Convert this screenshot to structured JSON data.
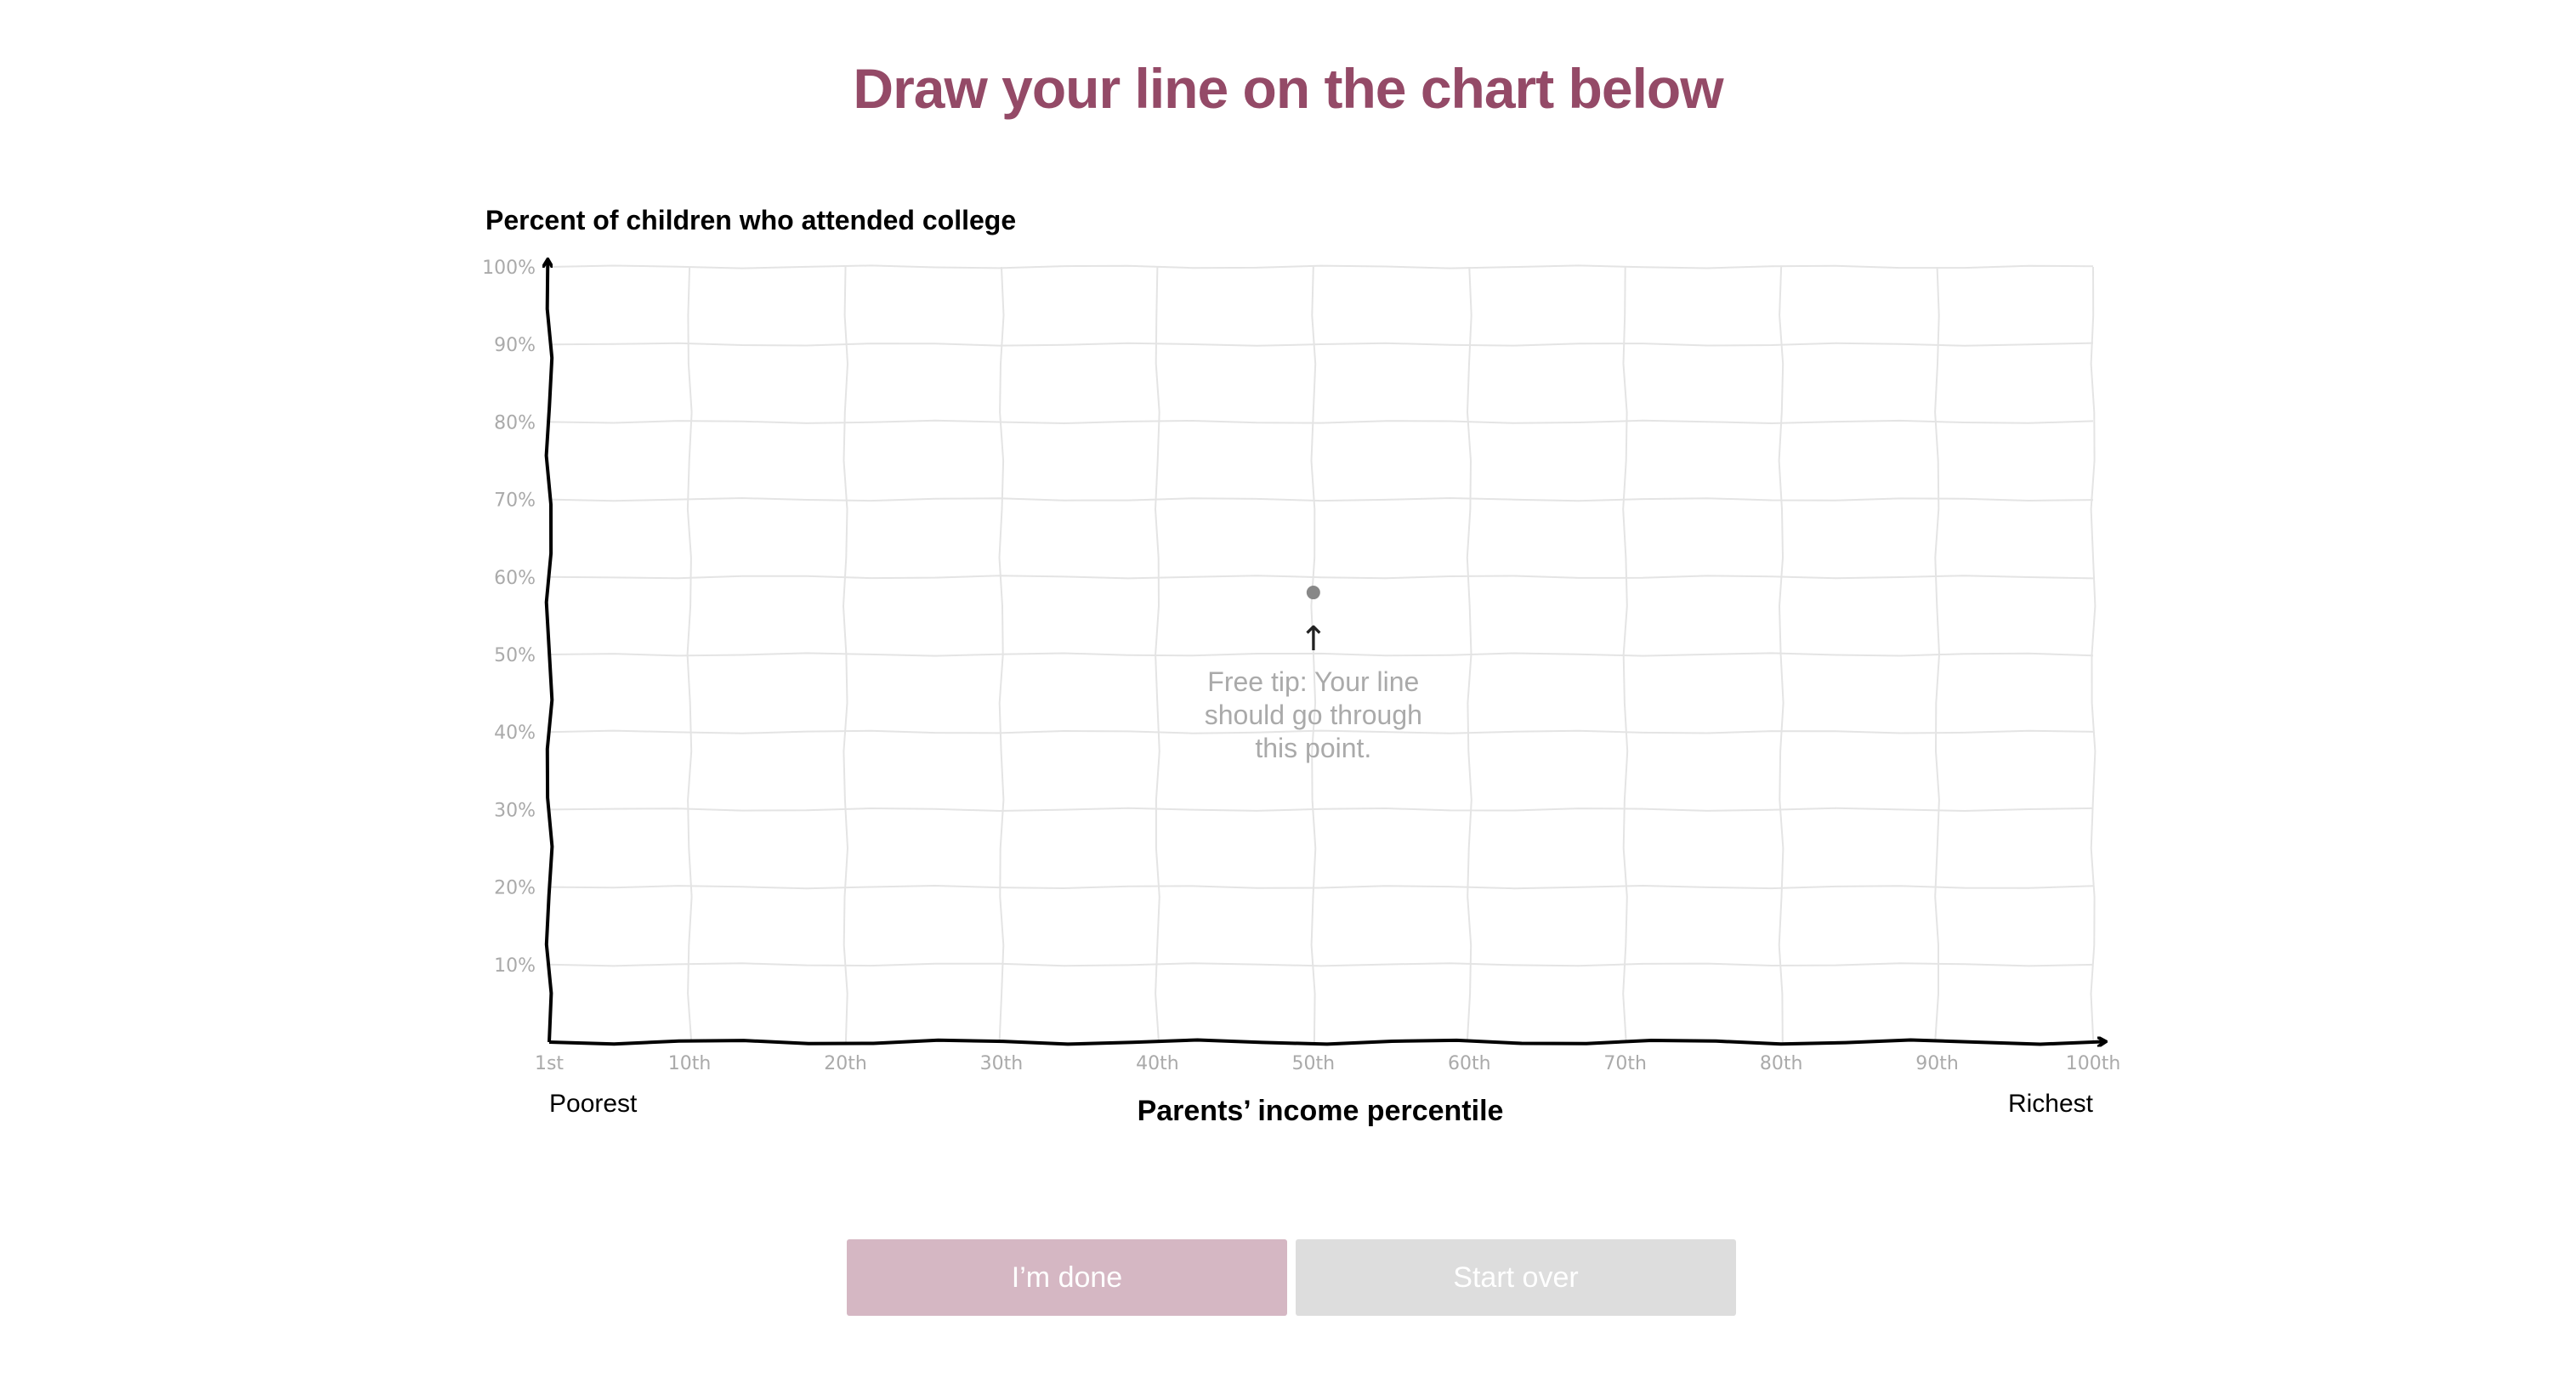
{
  "page": {
    "heading": "Draw your line on the chart below",
    "heading_color": "#944a67"
  },
  "tip": {
    "lines": [
      "Free tip: Your line",
      "should go through",
      "this point."
    ],
    "arrow": "↑"
  },
  "buttons": {
    "done_label": "I’m done",
    "done_color": "#d5b7c3",
    "start_over_label": "Start over",
    "start_over_color": "#dddddd"
  },
  "chart_data": {
    "type": "line",
    "ylabel": "Percent of children who attended college",
    "xlabel": "Parents’ income percentile",
    "x_min_label": "Poorest",
    "x_max_label": "Richest",
    "xlim": [
      1,
      100
    ],
    "ylim": [
      0,
      100
    ],
    "x_ticks": [
      {
        "value": 1,
        "label": "1st"
      },
      {
        "value": 10,
        "label": "10th"
      },
      {
        "value": 20,
        "label": "20th"
      },
      {
        "value": 30,
        "label": "30th"
      },
      {
        "value": 40,
        "label": "40th"
      },
      {
        "value": 50,
        "label": "50th"
      },
      {
        "value": 60,
        "label": "60th"
      },
      {
        "value": 70,
        "label": "70th"
      },
      {
        "value": 80,
        "label": "80th"
      },
      {
        "value": 90,
        "label": "90th"
      },
      {
        "value": 100,
        "label": "100th"
      }
    ],
    "y_ticks": [
      {
        "value": 10,
        "label": "10%"
      },
      {
        "value": 20,
        "label": "20%"
      },
      {
        "value": 30,
        "label": "30%"
      },
      {
        "value": 40,
        "label": "40%"
      },
      {
        "value": 50,
        "label": "50%"
      },
      {
        "value": 60,
        "label": "60%"
      },
      {
        "value": 70,
        "label": "70%"
      },
      {
        "value": 80,
        "label": "80%"
      },
      {
        "value": 90,
        "label": "90%"
      },
      {
        "value": 100,
        "label": "100%"
      }
    ],
    "grid": true,
    "series": [],
    "hint_point": {
      "x": 50,
      "y": 58
    }
  }
}
